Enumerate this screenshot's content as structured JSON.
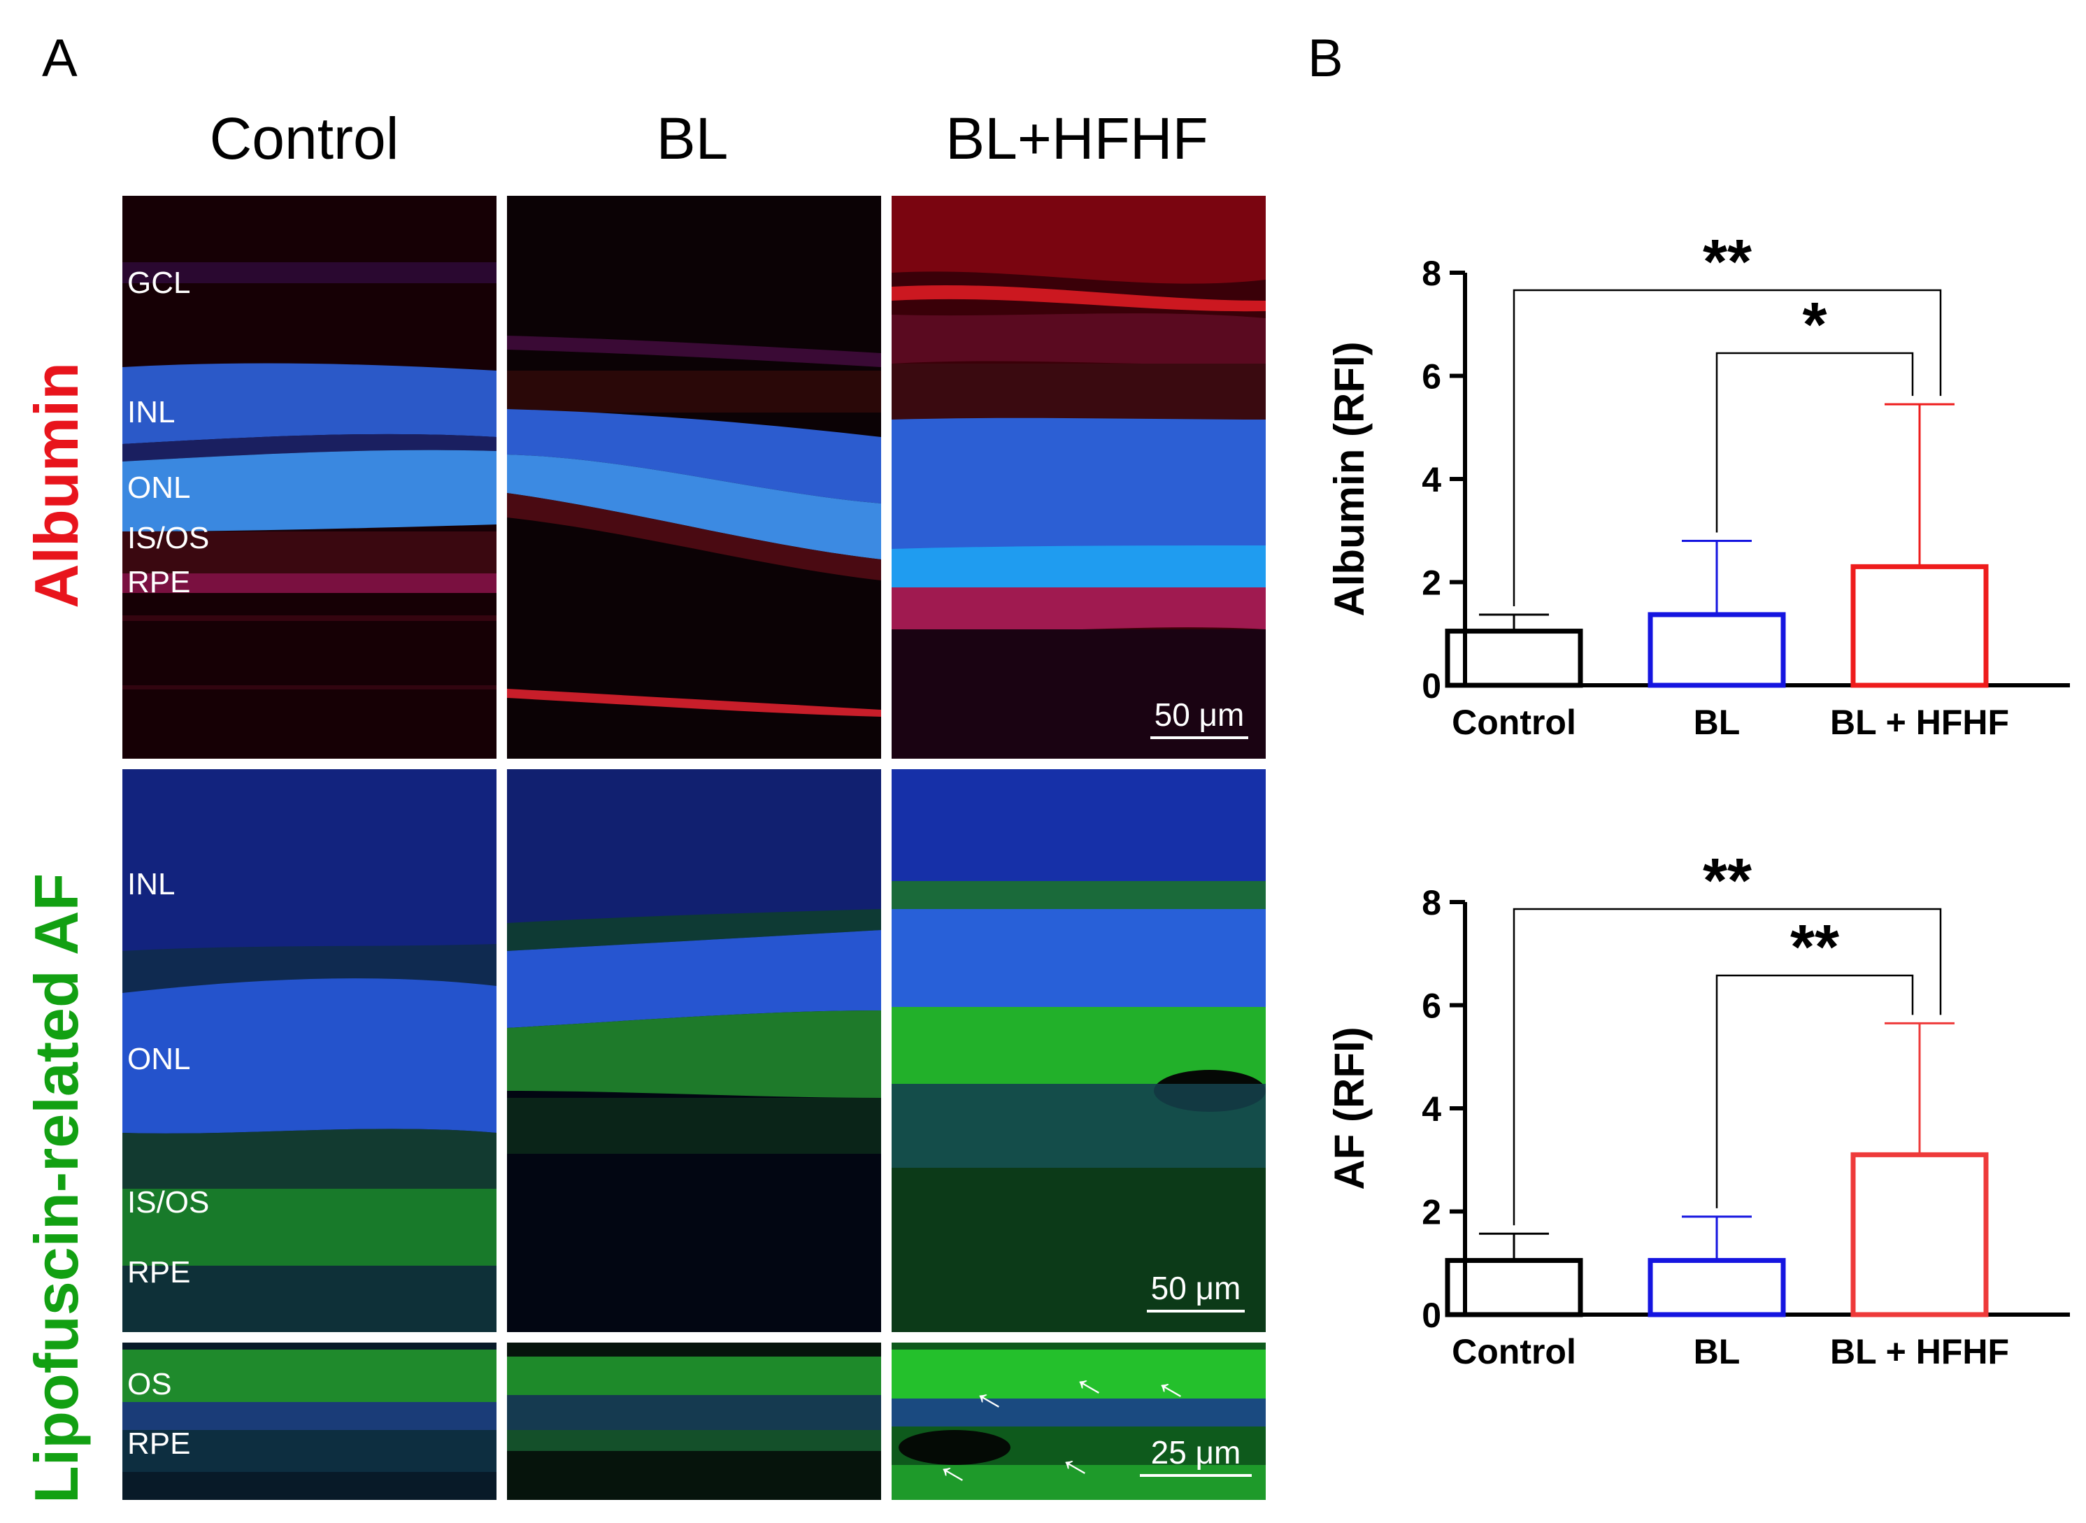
{
  "panel_a": {
    "letter": "A",
    "columns": [
      "Control",
      "BL",
      "BL+HFHF"
    ],
    "rows": {
      "albumin": {
        "label": "Albumin",
        "color": "#e8141c",
        "layer_labels": [
          "GCL",
          "INL",
          "ONL",
          "IS/OS",
          "RPE"
        ],
        "scale_bar": "50 μm"
      },
      "af": {
        "label": "Lipofuscin-related AF",
        "color": "#12a012",
        "layer_labels": [
          "INL",
          "ONL",
          "IS/OS",
          "RPE"
        ],
        "scale_bar": "50 μm"
      },
      "af_zoom": {
        "layer_labels": [
          "OS",
          "RPE"
        ],
        "scale_bar": "25 μm"
      }
    }
  },
  "panel_b": {
    "letter": "B"
  },
  "chart_data": [
    {
      "type": "bar",
      "categories": [
        "Control",
        "BL",
        "BL + HFHF"
      ],
      "values": [
        1.05,
        1.37,
        2.3
      ],
      "error_upper": [
        1.37,
        2.8,
        5.45
      ],
      "colors": [
        "#000000",
        "#1515e0",
        "#ee1c1c"
      ],
      "ylabel": "Albumin (RFI)",
      "ylim": [
        0,
        8
      ],
      "yticks": [
        0,
        2,
        4,
        6,
        8
      ],
      "grid": false,
      "significance": [
        {
          "from": "Control",
          "to": "BL + HFHF",
          "label": "**"
        },
        {
          "from": "BL",
          "to": "BL + HFHF",
          "label": "*"
        }
      ]
    },
    {
      "type": "bar",
      "categories": [
        "Control",
        "BL",
        "BL + HFHF"
      ],
      "values": [
        1.05,
        1.05,
        3.1
      ],
      "error_upper": [
        1.57,
        1.9,
        5.65
      ],
      "colors": [
        "#000000",
        "#1515e0",
        "#ee3a3a"
      ],
      "ylabel": "AF (RFI)",
      "ylim": [
        0,
        8
      ],
      "yticks": [
        0,
        2,
        4,
        6,
        8
      ],
      "grid": false,
      "significance": [
        {
          "from": "Control",
          "to": "BL + HFHF",
          "label": "**"
        },
        {
          "from": "BL",
          "to": "BL + HFHF",
          "label": "**"
        }
      ]
    }
  ]
}
